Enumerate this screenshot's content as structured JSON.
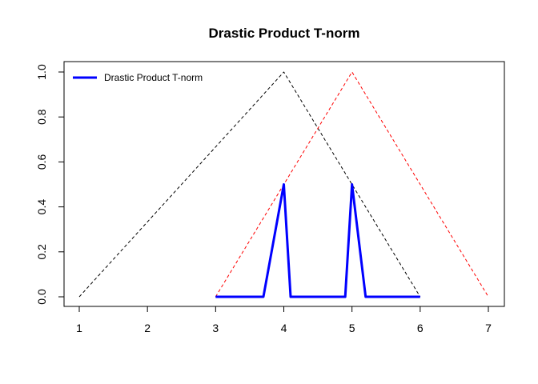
{
  "chart_data": {
    "type": "line",
    "title": "Drastic Product T-norm",
    "xlabel": "",
    "ylabel": "",
    "xlim": [
      1,
      7
    ],
    "ylim": [
      0,
      1
    ],
    "x_ticks": [
      "1",
      "2",
      "3",
      "4",
      "5",
      "6",
      "7"
    ],
    "y_ticks": [
      "0.0",
      "0.2",
      "0.4",
      "0.6",
      "0.8",
      "1.0"
    ],
    "grid": false,
    "legend": {
      "position": "top-left",
      "entries": [
        "Drastic Product T-norm"
      ]
    },
    "series": [
      {
        "name": "",
        "style": "dashed",
        "color": "#000000",
        "points": [
          [
            1,
            0
          ],
          [
            4,
            1
          ],
          [
            6,
            0
          ]
        ]
      },
      {
        "name": "",
        "style": "dashed",
        "color": "#ff0000",
        "points": [
          [
            3,
            0
          ],
          [
            5,
            1
          ],
          [
            7,
            0
          ]
        ]
      },
      {
        "name": "Drastic Product T-norm",
        "style": "solid",
        "color": "#0000ff",
        "points": [
          [
            3,
            0
          ],
          [
            3.7,
            0
          ],
          [
            4,
            0.5
          ],
          [
            4.1,
            0
          ],
          [
            4.9,
            0
          ],
          [
            5,
            0.5
          ],
          [
            5.2,
            0
          ],
          [
            6,
            0
          ]
        ]
      }
    ]
  }
}
